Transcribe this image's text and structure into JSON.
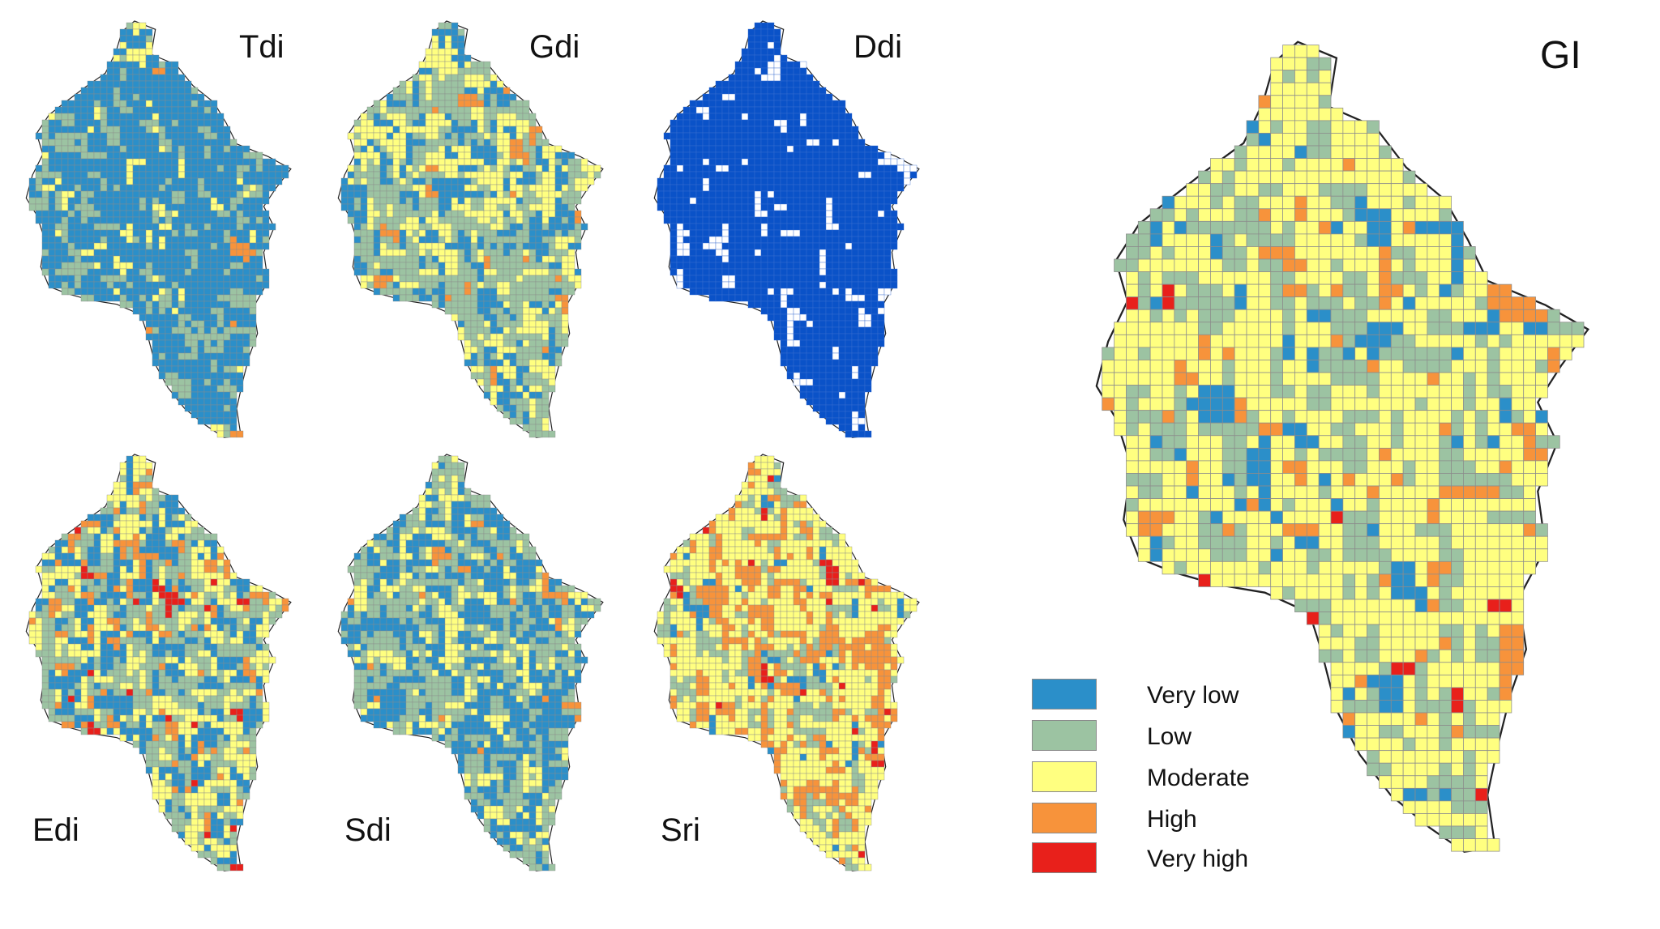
{
  "maps": [
    {
      "id": "tdi",
      "label": "Tdi",
      "palette": "index",
      "weights": [
        0.7,
        0.22,
        0.07,
        0.01,
        0.0
      ]
    },
    {
      "id": "gdi",
      "label": "Gdi",
      "palette": "index",
      "weights": [
        0.26,
        0.4,
        0.3,
        0.04,
        0.0
      ]
    },
    {
      "id": "ddi",
      "label": "Ddi",
      "palette": "ddi",
      "weights": [
        0.92,
        0.08
      ]
    },
    {
      "id": "edi",
      "label": "Edi",
      "palette": "index",
      "weights": [
        0.28,
        0.3,
        0.3,
        0.1,
        0.02
      ]
    },
    {
      "id": "sdi",
      "label": "Sdi",
      "palette": "index",
      "weights": [
        0.38,
        0.42,
        0.17,
        0.03,
        0.0
      ]
    },
    {
      "id": "sri",
      "label": "Sri",
      "palette": "index",
      "weights": [
        0.05,
        0.2,
        0.5,
        0.22,
        0.03
      ]
    },
    {
      "id": "gi",
      "label": "GI",
      "palette": "index",
      "weights": [
        0.08,
        0.27,
        0.53,
        0.11,
        0.01
      ]
    }
  ],
  "legend": [
    {
      "label": "Very low",
      "color": "#2b8fc9"
    },
    {
      "label": "Low",
      "color": "#9cc3a2"
    },
    {
      "label": "Moderate",
      "color": "#ffff80"
    },
    {
      "label": "High",
      "color": "#f7933b"
    },
    {
      "label": "Very high",
      "color": "#e8201b"
    }
  ],
  "ddi_colors": [
    "#0a52c8",
    "#ffffff"
  ]
}
